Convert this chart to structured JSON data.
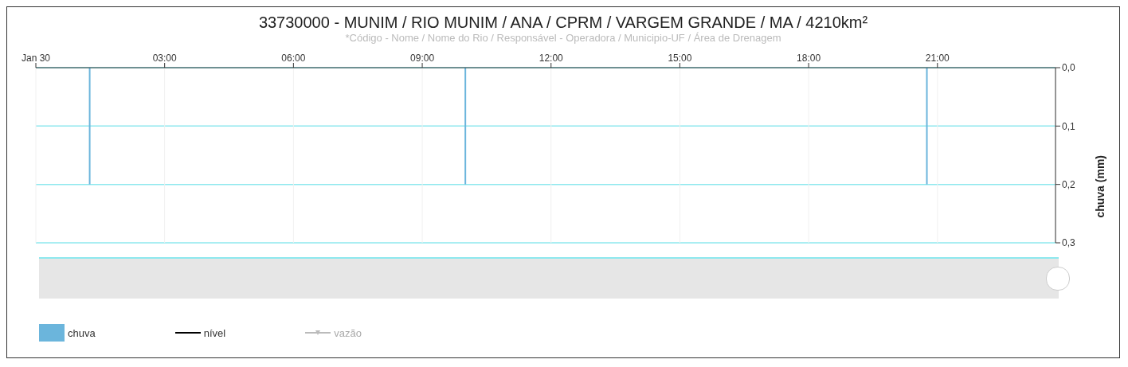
{
  "chart_data": {
    "type": "bar",
    "title": "33730000 - MUNIM / RIO MUNIM / ANA / CPRM / VARGEM GRANDE / MA / 4210km²",
    "subtitle": "*Código - Nome / Nome do Rio / Responsável - Operadora / Municipio-UF / Área de Drenagem",
    "ylabel": "chuva (mm)",
    "x": [
      1.25,
      10,
      20.75
    ],
    "series": [
      {
        "name": "chuva",
        "color": "#6bb5dc",
        "values": [
          0.2,
          0.2,
          0.2
        ]
      },
      {
        "name": "nível",
        "type": "line",
        "color": "#000000",
        "values": [
          null,
          null,
          null
        ]
      },
      {
        "name": "vazão",
        "type": "line",
        "color": "#bbbbbb",
        "marker": "triangle",
        "values": [
          null,
          null,
          null
        ]
      }
    ],
    "xlim": [
      0,
      23.75
    ],
    "xticks": [
      {
        "value": 0,
        "label": "Jan 30"
      },
      {
        "value": 3,
        "label": "03:00"
      },
      {
        "value": 6,
        "label": "06:00"
      },
      {
        "value": 9,
        "label": "09:00"
      },
      {
        "value": 12,
        "label": "12:00"
      },
      {
        "value": 15,
        "label": "15:00"
      },
      {
        "value": 18,
        "label": "18:00"
      },
      {
        "value": 21,
        "label": "21:00"
      }
    ],
    "ylim": [
      0.3,
      0
    ],
    "yticks": [
      {
        "value": 0,
        "label": "0,0"
      },
      {
        "value": 0.1,
        "label": "0,1"
      },
      {
        "value": 0.2,
        "label": "0,2"
      },
      {
        "value": 0.3,
        "label": "0,3"
      }
    ],
    "grid": true,
    "legend": "bottom left"
  }
}
